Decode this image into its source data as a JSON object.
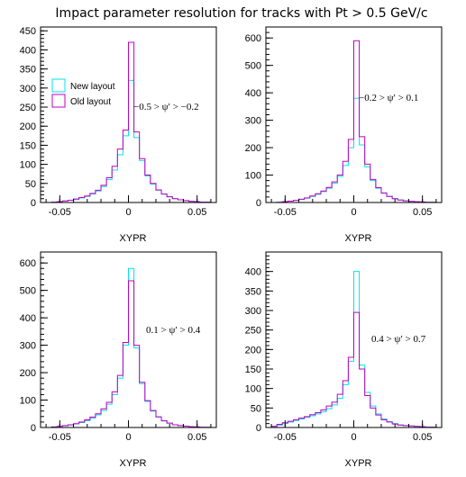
{
  "title": "Impact parameter resolution for tracks with Pt > 0.5 GeV/c",
  "colors": {
    "new": "#00e5e5",
    "old": "#c000c0",
    "frame": "#000000"
  },
  "legend": {
    "entries": [
      "New layout",
      "Old layout"
    ],
    "placement": "upper-left of first panel"
  },
  "chart_data": [
    {
      "type": "histogram",
      "annotation": "−0.5 > ψ′ > −0.2",
      "xlabel": "XYPR",
      "xlim": [
        -0.064,
        0.064
      ],
      "ylim": [
        0,
        460
      ],
      "yticks": [
        0,
        50,
        100,
        150,
        200,
        250,
        300,
        350,
        400,
        450
      ],
      "xticks": [
        -0.05,
        0,
        0.05
      ],
      "xtick_labels": [
        "-0.05",
        "0",
        "0.05"
      ],
      "bin_width": 0.004,
      "x_start": -0.06,
      "series": [
        {
          "name": "New layout",
          "values": [
            0,
            1,
            2,
            4,
            6,
            8,
            12,
            16,
            22,
            30,
            42,
            60,
            85,
            125,
            175,
            320,
            170,
            110,
            70,
            48,
            32,
            22,
            15,
            10,
            7,
            5,
            3,
            2,
            1,
            1
          ]
        },
        {
          "name": "Old layout",
          "values": [
            0,
            1,
            2,
            4,
            6,
            9,
            13,
            17,
            24,
            32,
            45,
            65,
            95,
            140,
            190,
            420,
            185,
            115,
            72,
            50,
            33,
            22,
            15,
            10,
            7,
            5,
            3,
            2,
            1,
            1
          ]
        }
      ]
    },
    {
      "type": "histogram",
      "annotation": "−0.2 > ψ′ > 0.1",
      "xlabel": "XYPR",
      "xlim": [
        -0.064,
        0.064
      ],
      "ylim": [
        0,
        640
      ],
      "yticks": [
        0,
        100,
        200,
        300,
        400,
        500,
        600
      ],
      "xticks": [
        -0.05,
        0,
        0.05
      ],
      "xtick_labels": [
        "-0.05",
        "0",
        "0.05"
      ],
      "bin_width": 0.004,
      "x_start": -0.06,
      "series": [
        {
          "name": "New layout",
          "values": [
            0,
            1,
            3,
            5,
            8,
            12,
            16,
            22,
            30,
            40,
            52,
            70,
            95,
            135,
            200,
            380,
            210,
            130,
            80,
            52,
            34,
            22,
            14,
            9,
            6,
            4,
            3,
            2,
            1,
            1
          ]
        },
        {
          "name": "Old layout",
          "values": [
            0,
            1,
            3,
            5,
            8,
            12,
            17,
            24,
            32,
            42,
            55,
            75,
            100,
            150,
            230,
            590,
            240,
            140,
            84,
            54,
            35,
            22,
            14,
            9,
            6,
            4,
            3,
            2,
            1,
            1
          ]
        }
      ]
    },
    {
      "type": "histogram",
      "annotation": "0.1 > ψ′ > 0.4",
      "xlabel": "XYPR",
      "xlim": [
        -0.064,
        0.064
      ],
      "ylim": [
        0,
        640
      ],
      "yticks": [
        0,
        100,
        200,
        300,
        400,
        500,
        600
      ],
      "xticks": [
        -0.05,
        0,
        0.05
      ],
      "xtick_labels": [
        "-0.05",
        "0",
        "0.05"
      ],
      "bin_width": 0.004,
      "x_start": -0.06,
      "series": [
        {
          "name": "New layout",
          "values": [
            0,
            2,
            4,
            6,
            9,
            13,
            18,
            25,
            34,
            46,
            62,
            85,
            120,
            180,
            300,
            580,
            290,
            160,
            95,
            60,
            38,
            24,
            16,
            10,
            7,
            5,
            3,
            2,
            1,
            1
          ]
        },
        {
          "name": "Old layout",
          "values": [
            0,
            2,
            4,
            7,
            10,
            14,
            20,
            28,
            38,
            50,
            68,
            92,
            130,
            190,
            310,
            535,
            300,
            165,
            98,
            62,
            39,
            25,
            16,
            10,
            7,
            5,
            3,
            2,
            1,
            1
          ]
        }
      ]
    },
    {
      "type": "histogram",
      "annotation": "0.4 > ψ′ > 0.7",
      "xlabel": "XYPR",
      "xlim": [
        -0.064,
        0.064
      ],
      "ylim": [
        0,
        450
      ],
      "yticks": [
        0,
        50,
        100,
        150,
        200,
        250,
        300,
        350,
        400
      ],
      "xticks": [
        -0.05,
        0,
        0.05
      ],
      "xtick_labels": [
        "-0.05",
        "0",
        "0.05"
      ],
      "bin_width": 0.004,
      "x_start": -0.06,
      "series": [
        {
          "name": "New layout",
          "values": [
            2,
            6,
            10,
            14,
            18,
            22,
            26,
            30,
            35,
            40,
            48,
            58,
            75,
            110,
            170,
            400,
            160,
            90,
            55,
            35,
            22,
            15,
            10,
            7,
            5,
            4,
            3,
            2,
            1,
            1
          ]
        },
        {
          "name": "Old layout",
          "values": [
            3,
            8,
            12,
            16,
            20,
            24,
            28,
            33,
            38,
            45,
            55,
            65,
            85,
            120,
            180,
            295,
            150,
            82,
            50,
            32,
            20,
            14,
            9,
            6,
            5,
            4,
            3,
            2,
            1,
            1
          ]
        }
      ]
    }
  ]
}
